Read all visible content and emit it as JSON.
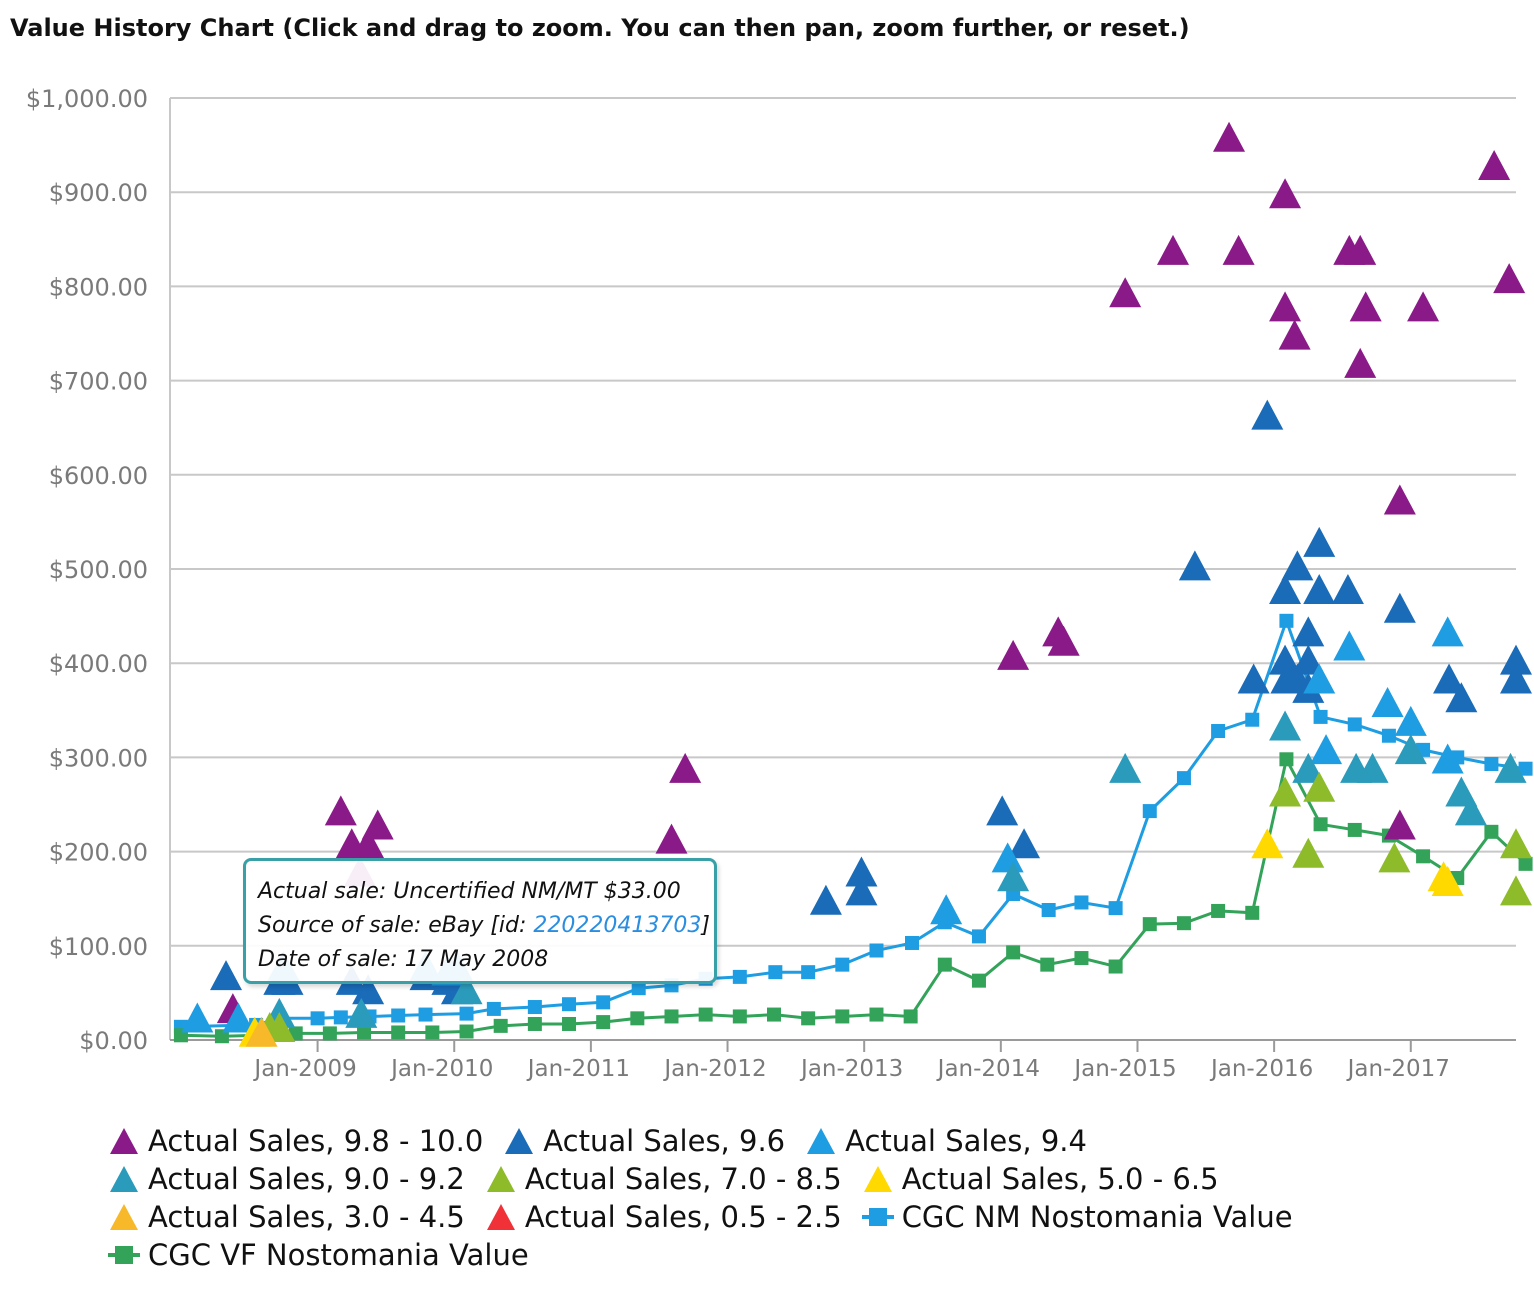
{
  "title": "Value History Chart (Click and drag to zoom. You can then pan, zoom further, or reset.)",
  "tooltip": {
    "line1": "Actual sale: Uncertified NM/MT $33.00",
    "line2_prefix": "Source of sale: eBay [id: ",
    "line2_id": "220220413703",
    "line2_suffix": "]",
    "line3": "Date of sale: 17 May 2008"
  },
  "chart_data": {
    "type": "scatter",
    "x_axis": {
      "min": 2007.92,
      "max": 2017.77,
      "ticks": [
        {
          "value": 2009.0,
          "label": "Jan-2009"
        },
        {
          "value": 2010.0,
          "label": "Jan-2010"
        },
        {
          "value": 2011.0,
          "label": "Jan-2011"
        },
        {
          "value": 2012.0,
          "label": "Jan-2012"
        },
        {
          "value": 2013.0,
          "label": "Jan-2013"
        },
        {
          "value": 2014.0,
          "label": "Jan-2014"
        },
        {
          "value": 2015.0,
          "label": "Jan-2015"
        },
        {
          "value": 2016.0,
          "label": "Jan-2016"
        },
        {
          "value": 2017.0,
          "label": "Jan-2017"
        }
      ]
    },
    "y_axis": {
      "min": 0,
      "max": 1000,
      "ticks": [
        {
          "value": 0,
          "label": "$0.00"
        },
        {
          "value": 100,
          "label": "$100.00"
        },
        {
          "value": 200,
          "label": "$200.00"
        },
        {
          "value": 300,
          "label": "$300.00"
        },
        {
          "value": 400,
          "label": "$400.00"
        },
        {
          "value": 500,
          "label": "$500.00"
        },
        {
          "value": 600,
          "label": "$600.00"
        },
        {
          "value": 700,
          "label": "$700.00"
        },
        {
          "value": 800,
          "label": "$800.00"
        },
        {
          "value": 900,
          "label": "$900.00"
        },
        {
          "value": 1000,
          "label": "$1,000.00"
        }
      ]
    },
    "grid": true,
    "legend_position": "bottom",
    "series": [
      {
        "name": "Actual Sales, 9.8 - 10.0",
        "kind": "triangle",
        "color": "#8b1a89",
        "points": [
          [
            2008.38,
            30
          ],
          [
            2009.17,
            240
          ],
          [
            2009.25,
            205
          ],
          [
            2009.31,
            175
          ],
          [
            2009.37,
            205
          ],
          [
            2009.44,
            225
          ],
          [
            2011.59,
            210
          ],
          [
            2011.69,
            285
          ],
          [
            2014.09,
            405
          ],
          [
            2014.42,
            430
          ],
          [
            2014.46,
            420
          ],
          [
            2014.91,
            790
          ],
          [
            2015.26,
            835
          ],
          [
            2015.67,
            955
          ],
          [
            2015.74,
            835
          ],
          [
            2016.08,
            895
          ],
          [
            2016.08,
            775
          ],
          [
            2016.15,
            745
          ],
          [
            2016.55,
            835
          ],
          [
            2016.63,
            835
          ],
          [
            2016.67,
            775
          ],
          [
            2016.63,
            715
          ],
          [
            2016.92,
            570
          ],
          [
            2016.92,
            225
          ],
          [
            2017.09,
            775
          ],
          [
            2017.61,
            925
          ],
          [
            2017.72,
            805
          ]
        ]
      },
      {
        "name": "Actual Sales, 9.6",
        "kind": "triangle",
        "color": "#1a6bb8",
        "points": [
          [
            2008.33,
            65
          ],
          [
            2008.72,
            60
          ],
          [
            2008.78,
            60
          ],
          [
            2009.25,
            60
          ],
          [
            2009.37,
            50
          ],
          [
            2009.79,
            65
          ],
          [
            2009.95,
            60
          ],
          [
            2010.02,
            50
          ],
          [
            2012.72,
            145
          ],
          [
            2012.98,
            175
          ],
          [
            2012.98,
            155
          ],
          [
            2014.01,
            240
          ],
          [
            2014.17,
            205
          ],
          [
            2015.42,
            500
          ],
          [
            2015.85,
            380
          ],
          [
            2015.95,
            660
          ],
          [
            2016.08,
            475
          ],
          [
            2016.08,
            400
          ],
          [
            2016.09,
            380
          ],
          [
            2016.17,
            500
          ],
          [
            2016.17,
            380
          ],
          [
            2016.25,
            430
          ],
          [
            2016.25,
            400
          ],
          [
            2016.25,
            370
          ],
          [
            2016.33,
            525
          ],
          [
            2016.33,
            475
          ],
          [
            2016.54,
            475
          ],
          [
            2016.92,
            455
          ],
          [
            2017.28,
            380
          ],
          [
            2017.37,
            360
          ],
          [
            2017.77,
            400
          ],
          [
            2017.77,
            380
          ]
        ]
      },
      {
        "name": "Actual Sales, 9.4",
        "kind": "triangle",
        "color": "#1e9de2",
        "points": [
          [
            2008.12,
            20
          ],
          [
            2008.42,
            20
          ],
          [
            2008.75,
            75
          ],
          [
            2009.79,
            75
          ],
          [
            2009.95,
            70
          ],
          [
            2010.02,
            75
          ],
          [
            2013.6,
            135
          ],
          [
            2014.05,
            190
          ],
          [
            2016.33,
            380
          ],
          [
            2016.38,
            305
          ],
          [
            2016.55,
            415
          ],
          [
            2016.83,
            355
          ],
          [
            2017.0,
            335
          ],
          [
            2017.27,
            430
          ],
          [
            2017.27,
            295
          ]
        ]
      },
      {
        "name": "Actual Sales, 9.0 - 9.2",
        "kind": "triangle",
        "color": "#2b9bbb",
        "points": [
          [
            2008.72,
            25
          ],
          [
            2009.32,
            25
          ],
          [
            2010.09,
            50
          ],
          [
            2014.09,
            170
          ],
          [
            2014.91,
            285
          ],
          [
            2016.08,
            330
          ],
          [
            2016.25,
            285
          ],
          [
            2016.6,
            285
          ],
          [
            2016.72,
            285
          ],
          [
            2017.0,
            305
          ],
          [
            2017.37,
            260
          ],
          [
            2017.44,
            240
          ],
          [
            2017.73,
            285
          ]
        ]
      },
      {
        "name": "Actual Sales, 7.0 - 8.5",
        "kind": "triangle",
        "color": "#8dbb2a",
        "points": [
          [
            2008.65,
            10
          ],
          [
            2008.72,
            10
          ],
          [
            2016.08,
            260
          ],
          [
            2016.25,
            195
          ],
          [
            2016.33,
            265
          ],
          [
            2016.88,
            190
          ],
          [
            2017.77,
            205
          ],
          [
            2017.77,
            155
          ]
        ]
      },
      {
        "name": "Actual Sales, 5.0 - 6.5",
        "kind": "triangle",
        "color": "#ffd900",
        "points": [
          [
            2008.54,
            5
          ],
          [
            2015.95,
            205
          ],
          [
            2017.24,
            170
          ],
          [
            2017.27,
            165
          ]
        ]
      },
      {
        "name": "Actual Sales, 3.0 - 4.5",
        "kind": "triangle",
        "color": "#f7b92a",
        "points": [
          [
            2008.59,
            5
          ]
        ]
      },
      {
        "name": "Actual Sales, 0.5 - 2.5",
        "kind": "triangle",
        "color": "#f03238",
        "points": []
      },
      {
        "name": "CGC NM Nostomania Value",
        "kind": "line",
        "color": "#1e9de2",
        "points": [
          [
            2008.0,
            14
          ],
          [
            2008.55,
            16
          ],
          [
            2008.72,
            23
          ],
          [
            2009.0,
            23
          ],
          [
            2009.17,
            24
          ],
          [
            2009.38,
            25
          ],
          [
            2009.59,
            26
          ],
          [
            2009.79,
            27
          ],
          [
            2010.09,
            28
          ],
          [
            2010.29,
            33
          ],
          [
            2010.59,
            35
          ],
          [
            2010.84,
            38
          ],
          [
            2011.09,
            40
          ],
          [
            2011.35,
            55
          ],
          [
            2011.59,
            58
          ],
          [
            2011.84,
            65
          ],
          [
            2012.09,
            67
          ],
          [
            2012.35,
            72
          ],
          [
            2012.59,
            72
          ],
          [
            2012.84,
            80
          ],
          [
            2013.09,
            95
          ],
          [
            2013.35,
            103
          ],
          [
            2013.59,
            125
          ],
          [
            2013.84,
            110
          ],
          [
            2014.09,
            155
          ],
          [
            2014.35,
            138
          ],
          [
            2014.59,
            146
          ],
          [
            2014.84,
            140
          ],
          [
            2015.09,
            243
          ],
          [
            2015.34,
            278
          ],
          [
            2015.59,
            328
          ],
          [
            2015.84,
            340
          ],
          [
            2016.09,
            445
          ],
          [
            2016.34,
            343
          ],
          [
            2016.59,
            335
          ],
          [
            2016.84,
            323
          ],
          [
            2017.09,
            308
          ],
          [
            2017.34,
            300
          ],
          [
            2017.59,
            293
          ],
          [
            2017.84,
            288
          ]
        ]
      },
      {
        "name": "CGC VF Nostomania Value",
        "kind": "line",
        "color": "#33a35a",
        "points": [
          [
            2008.0,
            5
          ],
          [
            2008.3,
            4
          ],
          [
            2008.55,
            5
          ],
          [
            2008.84,
            7
          ],
          [
            2009.09,
            7
          ],
          [
            2009.34,
            8
          ],
          [
            2009.59,
            8
          ],
          [
            2009.84,
            8
          ],
          [
            2010.09,
            9
          ],
          [
            2010.34,
            15
          ],
          [
            2010.59,
            17
          ],
          [
            2010.84,
            17
          ],
          [
            2011.09,
            19
          ],
          [
            2011.34,
            23
          ],
          [
            2011.59,
            25
          ],
          [
            2011.84,
            27
          ],
          [
            2012.09,
            25
          ],
          [
            2012.34,
            27
          ],
          [
            2012.59,
            23
          ],
          [
            2012.84,
            25
          ],
          [
            2013.09,
            27
          ],
          [
            2013.34,
            25
          ],
          [
            2013.59,
            80
          ],
          [
            2013.84,
            63
          ],
          [
            2014.09,
            93
          ],
          [
            2014.34,
            80
          ],
          [
            2014.59,
            87
          ],
          [
            2014.84,
            78
          ],
          [
            2015.09,
            123
          ],
          [
            2015.34,
            124
          ],
          [
            2015.59,
            137
          ],
          [
            2015.84,
            135
          ],
          [
            2016.09,
            298
          ],
          [
            2016.34,
            229
          ],
          [
            2016.59,
            223
          ],
          [
            2016.84,
            217
          ],
          [
            2017.09,
            195
          ],
          [
            2017.34,
            172
          ],
          [
            2017.59,
            221
          ],
          [
            2017.84,
            187
          ]
        ]
      }
    ]
  }
}
